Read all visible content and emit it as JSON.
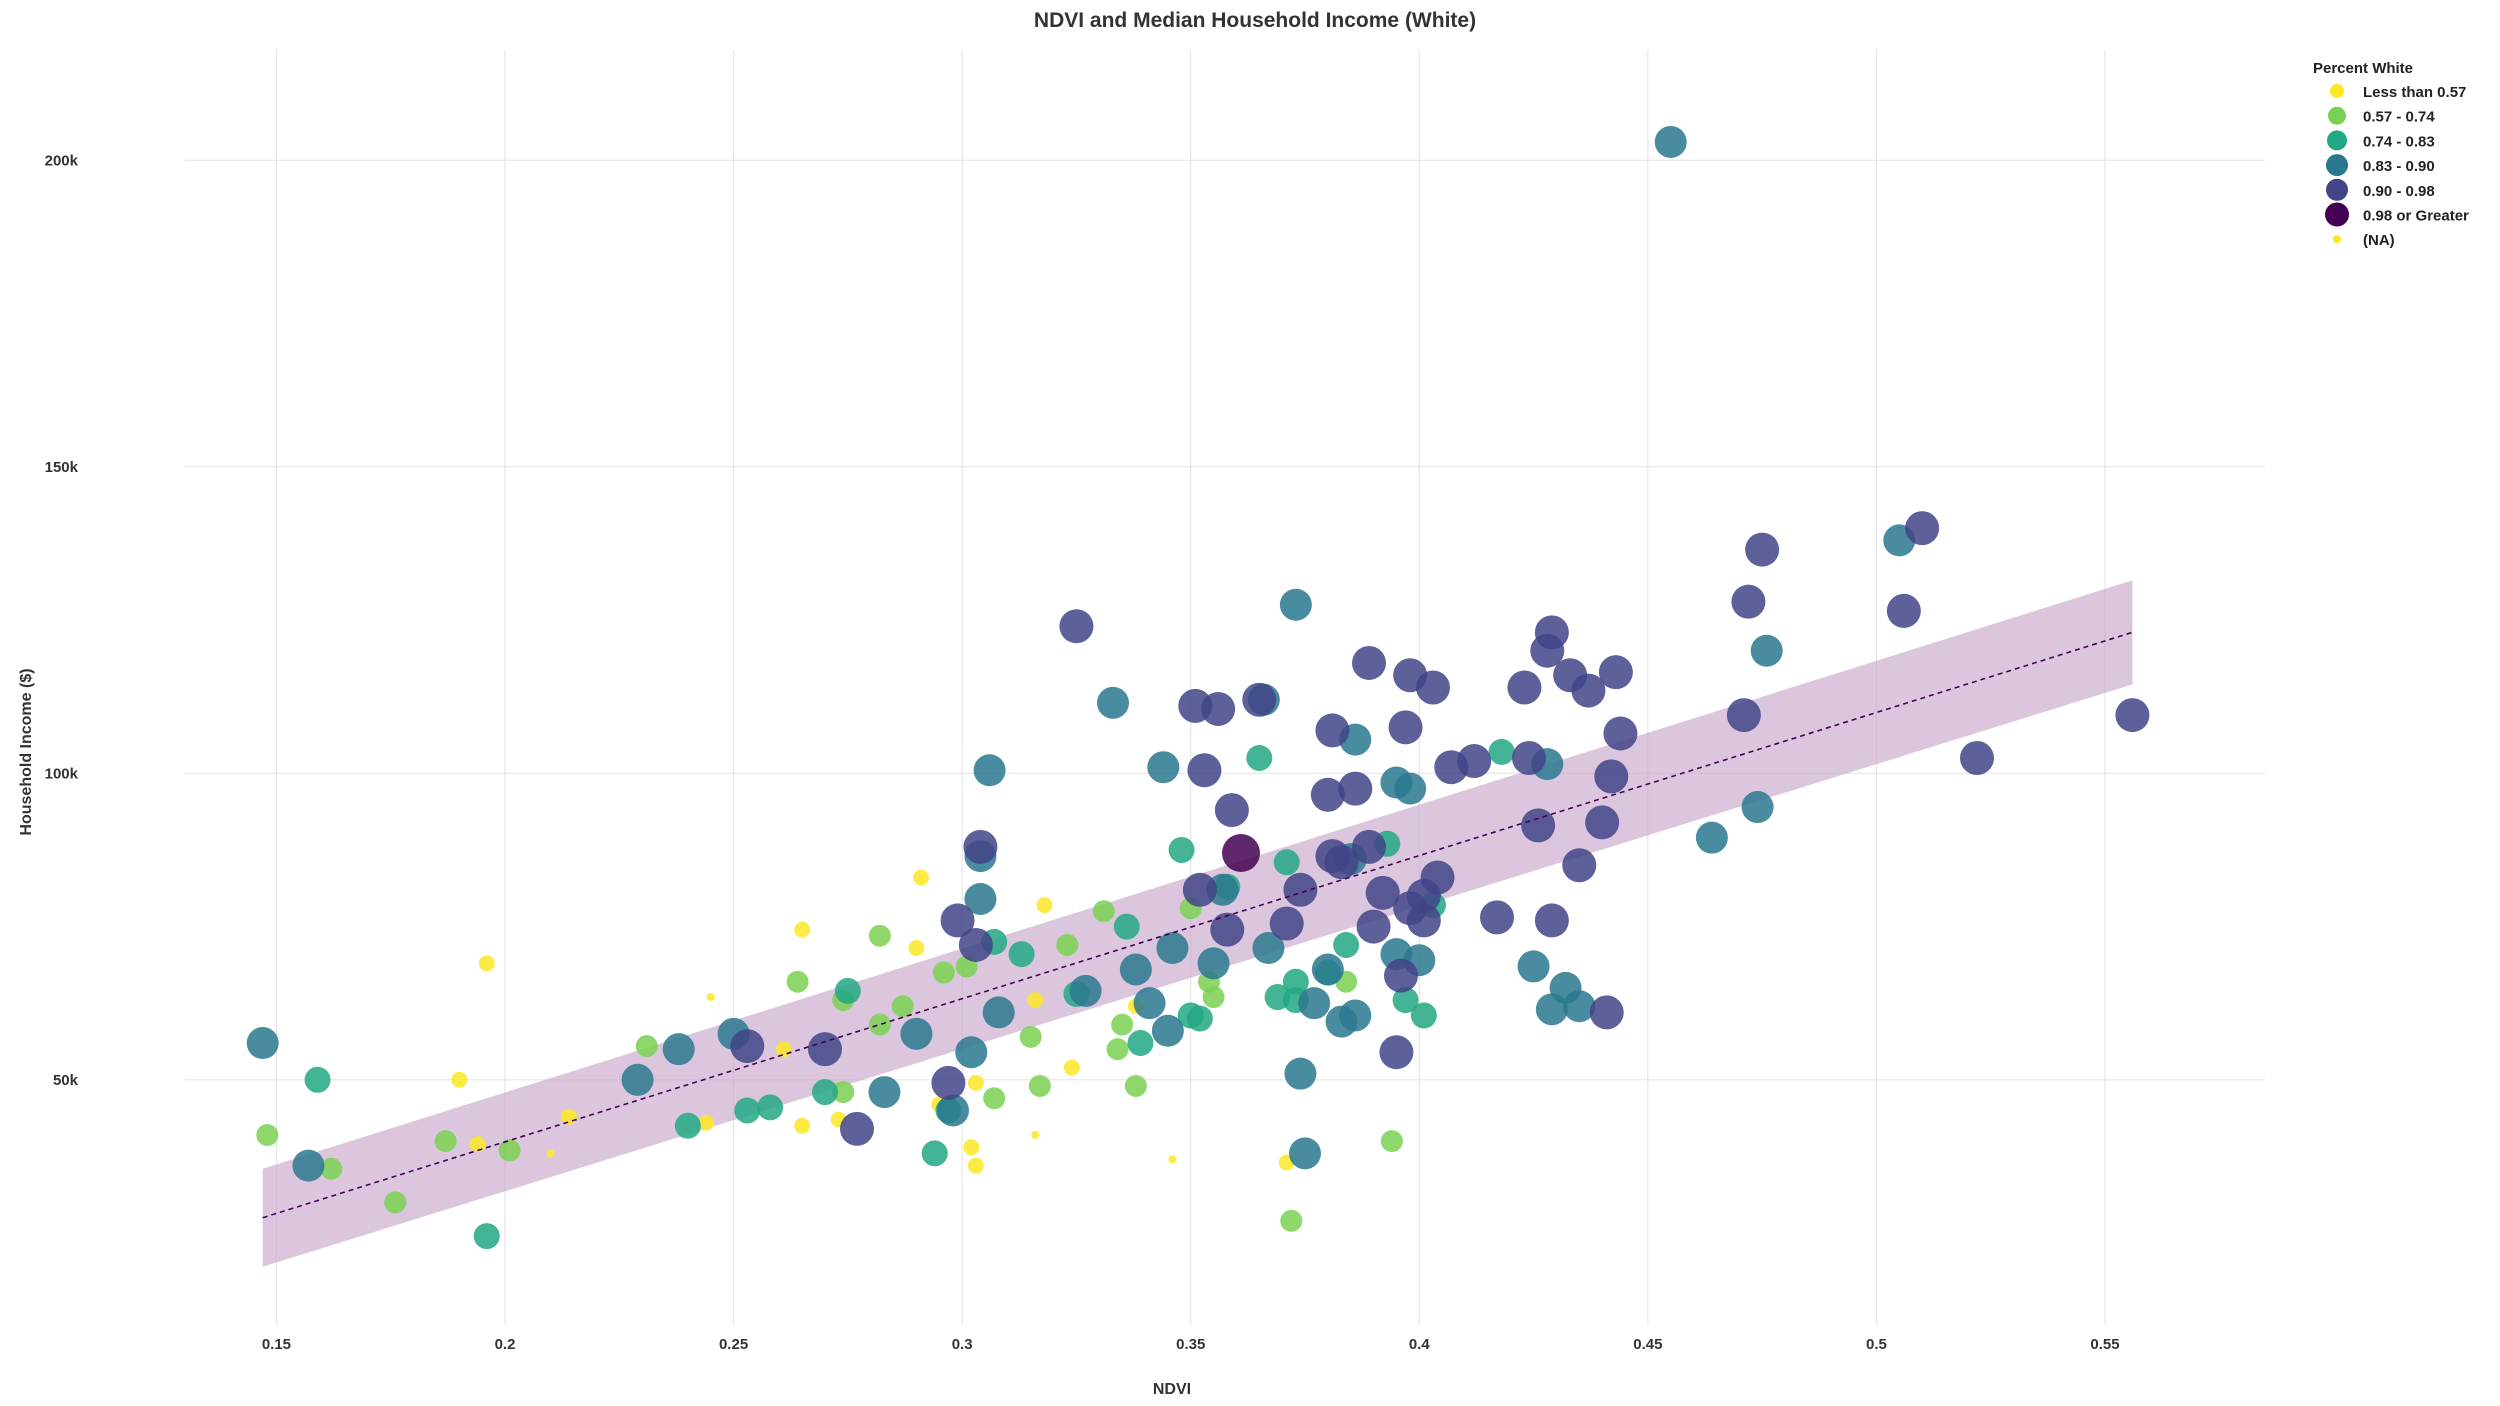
{
  "chart_data": {
    "type": "scatter",
    "title": "NDVI and Median Household Income (White)",
    "xlabel": "NDVI",
    "ylabel": "Household Income ($)",
    "xlim": [
      0.13,
      0.585
    ],
    "ylim": [
      10000,
      218000
    ],
    "x_ticks": [
      {
        "value": 0.15,
        "label": "0.15"
      },
      {
        "value": 0.2,
        "label": "0.2"
      },
      {
        "value": 0.25,
        "label": "0.25"
      },
      {
        "value": 0.3,
        "label": "0.3"
      },
      {
        "value": 0.35,
        "label": "0.35"
      },
      {
        "value": 0.4,
        "label": "0.4"
      },
      {
        "value": 0.45,
        "label": "0.45"
      },
      {
        "value": 0.5,
        "label": "0.5"
      },
      {
        "value": 0.55,
        "label": "0.55"
      }
    ],
    "y_ticks": [
      {
        "value": 50000,
        "label": "50k"
      },
      {
        "value": 100000,
        "label": "100k"
      },
      {
        "value": 150000,
        "label": "150k"
      },
      {
        "value": 200000,
        "label": "200k"
      }
    ],
    "grid": true,
    "legend": {
      "title": "Percent White",
      "position": "top-right",
      "items": [
        {
          "label": "Less than 0.57",
          "color": "#fde725"
        },
        {
          "label": "0.57 - 0.74",
          "color": "#7ad151"
        },
        {
          "label": "0.74 - 0.83",
          "color": "#22a884"
        },
        {
          "label": "0.83 - 0.90",
          "color": "#2a788e"
        },
        {
          "label": "0.90 - 0.98",
          "color": "#414487"
        },
        {
          "label": "0.98 or Greater",
          "color": "#440154"
        },
        {
          "label": "(NA)",
          "color": "#fde725"
        }
      ]
    },
    "trend": {
      "type": "linear",
      "color": "#440154",
      "band_color": "#c7a8cc",
      "x": [
        0.147,
        0.556
      ],
      "y": [
        27500,
        123000
      ],
      "ci_low": [
        19500,
        114500
      ],
      "ci_high": [
        35500,
        131500
      ]
    },
    "series": [
      {
        "name": "Less than 0.57",
        "color": "#fde725",
        "points": [
          [
            0.196,
            69000
          ],
          [
            0.29,
            71500
          ],
          [
            0.291,
            83000
          ],
          [
            0.265,
            74500
          ],
          [
            0.318,
            78500
          ],
          [
            0.19,
            50000
          ],
          [
            0.244,
            43000
          ],
          [
            0.265,
            42500
          ],
          [
            0.273,
            43500
          ],
          [
            0.302,
            39000
          ],
          [
            0.303,
            36000
          ],
          [
            0.303,
            49500
          ],
          [
            0.316,
            63000
          ],
          [
            0.324,
            52000
          ],
          [
            0.338,
            62000
          ],
          [
            0.295,
            46000
          ],
          [
            0.194,
            39500
          ],
          [
            0.214,
            44000
          ],
          [
            0.261,
            55000
          ],
          [
            0.371,
            36500
          ]
        ]
      },
      {
        "name": "0.57 - 0.74",
        "color": "#7ad151",
        "points": [
          [
            0.148,
            41000
          ],
          [
            0.162,
            35500
          ],
          [
            0.176,
            30000
          ],
          [
            0.187,
            40000
          ],
          [
            0.201,
            38500
          ],
          [
            0.231,
            55500
          ],
          [
            0.264,
            66000
          ],
          [
            0.274,
            48000
          ],
          [
            0.274,
            63000
          ],
          [
            0.282,
            73500
          ],
          [
            0.282,
            59000
          ],
          [
            0.287,
            62000
          ],
          [
            0.296,
            67500
          ],
          [
            0.301,
            68500
          ],
          [
            0.307,
            47000
          ],
          [
            0.315,
            57000
          ],
          [
            0.317,
            49000
          ],
          [
            0.323,
            72000
          ],
          [
            0.331,
            77500
          ],
          [
            0.334,
            55000
          ],
          [
            0.335,
            59000
          ],
          [
            0.338,
            49000
          ],
          [
            0.35,
            78000
          ],
          [
            0.354,
            66000
          ],
          [
            0.355,
            63500
          ],
          [
            0.372,
            27000
          ],
          [
            0.384,
            66000
          ],
          [
            0.394,
            40000
          ]
        ]
      },
      {
        "name": "0.74 - 0.83",
        "color": "#22a884",
        "points": [
          [
            0.159,
            50000
          ],
          [
            0.196,
            24500
          ],
          [
            0.24,
            42500
          ],
          [
            0.253,
            45000
          ],
          [
            0.258,
            45500
          ],
          [
            0.27,
            48000
          ],
          [
            0.275,
            64500
          ],
          [
            0.294,
            38000
          ],
          [
            0.297,
            45000
          ],
          [
            0.307,
            72500
          ],
          [
            0.313,
            70500
          ],
          [
            0.325,
            64000
          ],
          [
            0.336,
            75000
          ],
          [
            0.339,
            56000
          ],
          [
            0.348,
            87500
          ],
          [
            0.35,
            60500
          ],
          [
            0.352,
            60000
          ],
          [
            0.358,
            81500
          ],
          [
            0.365,
            102500
          ],
          [
            0.369,
            63500
          ],
          [
            0.371,
            85500
          ],
          [
            0.373,
            66000
          ],
          [
            0.373,
            63000
          ],
          [
            0.38,
            67500
          ],
          [
            0.384,
            72000
          ],
          [
            0.393,
            88500
          ],
          [
            0.397,
            63000
          ],
          [
            0.401,
            60500
          ],
          [
            0.403,
            78500
          ],
          [
            0.418,
            103500
          ]
        ]
      },
      {
        "name": "0.83 - 0.90",
        "color": "#2a788e",
        "points": [
          [
            0.147,
            56000
          ],
          [
            0.157,
            36000
          ],
          [
            0.229,
            50000
          ],
          [
            0.238,
            55000
          ],
          [
            0.25,
            57500
          ],
          [
            0.283,
            48000
          ],
          [
            0.29,
            57500
          ],
          [
            0.298,
            45000
          ],
          [
            0.302,
            54500
          ],
          [
            0.304,
            79500
          ],
          [
            0.304,
            86500
          ],
          [
            0.306,
            100500
          ],
          [
            0.308,
            61000
          ],
          [
            0.327,
            64500
          ],
          [
            0.333,
            111500
          ],
          [
            0.338,
            68000
          ],
          [
            0.341,
            62500
          ],
          [
            0.344,
            101000
          ],
          [
            0.345,
            58000
          ],
          [
            0.346,
            71500
          ],
          [
            0.355,
            69000
          ],
          [
            0.357,
            81000
          ],
          [
            0.366,
            112000
          ],
          [
            0.367,
            71500
          ],
          [
            0.373,
            127500
          ],
          [
            0.374,
            51000
          ],
          [
            0.375,
            38000
          ],
          [
            0.377,
            62500
          ],
          [
            0.38,
            68000
          ],
          [
            0.383,
            59500
          ],
          [
            0.385,
            86000
          ],
          [
            0.386,
            105500
          ],
          [
            0.386,
            60500
          ],
          [
            0.395,
            70500
          ],
          [
            0.395,
            98500
          ],
          [
            0.398,
            97500
          ],
          [
            0.4,
            69500
          ],
          [
            0.425,
            68500
          ],
          [
            0.428,
            101500
          ],
          [
            0.429,
            61500
          ],
          [
            0.432,
            65000
          ],
          [
            0.435,
            62000
          ],
          [
            0.455,
            203000
          ],
          [
            0.464,
            89500
          ],
          [
            0.474,
            94500
          ],
          [
            0.476,
            120000
          ],
          [
            0.505,
            138000
          ]
        ]
      },
      {
        "name": "0.90 - 0.98",
        "color": "#414487",
        "points": [
          [
            0.253,
            55500
          ],
          [
            0.27,
            55000
          ],
          [
            0.277,
            42000
          ],
          [
            0.297,
            49500
          ],
          [
            0.299,
            76000
          ],
          [
            0.303,
            72000
          ],
          [
            0.304,
            88000
          ],
          [
            0.325,
            124000
          ],
          [
            0.351,
            111000
          ],
          [
            0.352,
            81000
          ],
          [
            0.353,
            100500
          ],
          [
            0.356,
            110500
          ],
          [
            0.358,
            74500
          ],
          [
            0.359,
            94000
          ],
          [
            0.365,
            112000
          ],
          [
            0.371,
            75500
          ],
          [
            0.374,
            81000
          ],
          [
            0.38,
            96500
          ],
          [
            0.381,
            107000
          ],
          [
            0.381,
            86500
          ],
          [
            0.383,
            85500
          ],
          [
            0.386,
            97500
          ],
          [
            0.389,
            118000
          ],
          [
            0.389,
            88000
          ],
          [
            0.39,
            75000
          ],
          [
            0.392,
            80500
          ],
          [
            0.395,
            54500
          ],
          [
            0.396,
            67000
          ],
          [
            0.397,
            107500
          ],
          [
            0.398,
            116000
          ],
          [
            0.398,
            78000
          ],
          [
            0.401,
            76000
          ],
          [
            0.401,
            80000
          ],
          [
            0.403,
            114000
          ],
          [
            0.404,
            83000
          ],
          [
            0.407,
            101000
          ],
          [
            0.412,
            102000
          ],
          [
            0.417,
            76500
          ],
          [
            0.423,
            114000
          ],
          [
            0.424,
            102500
          ],
          [
            0.426,
            91500
          ],
          [
            0.428,
            120000
          ],
          [
            0.429,
            123000
          ],
          [
            0.429,
            76000
          ],
          [
            0.433,
            116000
          ],
          [
            0.435,
            85000
          ],
          [
            0.437,
            113500
          ],
          [
            0.44,
            92000
          ],
          [
            0.441,
            61000
          ],
          [
            0.442,
            99500
          ],
          [
            0.443,
            116500
          ],
          [
            0.444,
            106500
          ],
          [
            0.471,
            109500
          ],
          [
            0.472,
            128000
          ],
          [
            0.475,
            136500
          ],
          [
            0.506,
            126500
          ],
          [
            0.51,
            140000
          ],
          [
            0.522,
            102500
          ],
          [
            0.556,
            109500
          ]
        ]
      },
      {
        "name": "0.98 or Greater",
        "color": "#440154",
        "points": [
          [
            0.361,
            87000
          ]
        ]
      },
      {
        "name": "(NA)",
        "color": "#fde725",
        "points": [
          [
            0.21,
            38000
          ],
          [
            0.245,
            63500
          ],
          [
            0.316,
            41000
          ],
          [
            0.346,
            37000
          ]
        ]
      }
    ]
  }
}
